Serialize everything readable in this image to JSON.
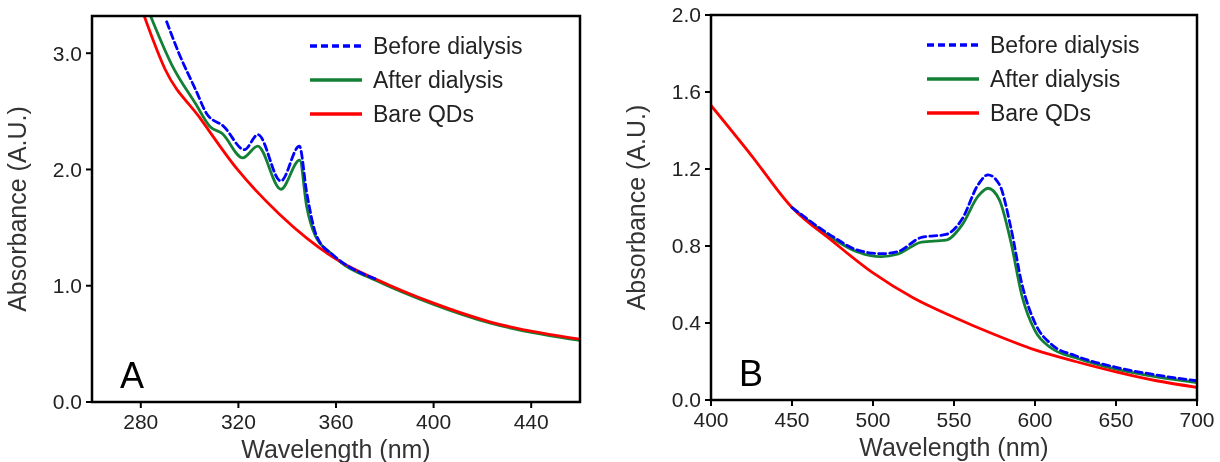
{
  "chart_data": [
    {
      "type": "line",
      "xlabel": "Wavelength (nm)",
      "ylabel": "Absorbance (A.U.)",
      "annotations": [
        "A"
      ],
      "legend": "top right",
      "xlim": [
        260,
        460
      ],
      "xticks": [
        280,
        320,
        360,
        400,
        440
      ],
      "ylim": [
        0,
        3.32
      ],
      "yticks": [
        {
          "value": 0,
          "label": "0.0"
        },
        {
          "value": 1,
          "label": "1.0"
        },
        {
          "value": 2,
          "label": "2.0"
        },
        {
          "value": 3,
          "label": "3.0"
        }
      ],
      "series": [
        {
          "name": "Before dialysis",
          "color": "#0000ff",
          "line_style": "dashed",
          "x": [
            290.6,
            295.6,
            302.6,
            307,
            314,
            322.5,
            328,
            337.4,
            345,
            348,
            352,
            359,
            362,
            376
          ],
          "values": [
            3.27,
            3.0,
            2.68,
            2.48,
            2.37,
            2.17,
            2.3,
            1.9,
            2.2,
            1.8,
            1.43,
            1.26,
            1.21,
            1.06
          ]
        },
        {
          "name": "After dialysis",
          "color": "#138036",
          "line_style": "solid",
          "x": [
            284,
            292.7,
            302.6,
            308.3,
            313.3,
            321.8,
            327.9,
            337.4,
            345.1,
            348,
            351.5,
            357.9,
            362,
            376,
            400,
            423,
            460
          ],
          "values": [
            3.32,
            2.9,
            2.56,
            2.37,
            2.31,
            2.1,
            2.2,
            1.83,
            2.08,
            1.68,
            1.43,
            1.28,
            1.2,
            1.05,
            0.84,
            0.68,
            0.53
          ]
        },
        {
          "name": "Bare QDs",
          "color": "#ff0000",
          "line_style": "solid",
          "x": [
            281.4,
            290,
            304,
            319.6,
            336.6,
            348,
            360.7,
            376,
            400,
            423,
            460
          ],
          "values": [
            3.32,
            2.86,
            2.45,
            2.0,
            1.62,
            1.41,
            1.22,
            1.06,
            0.85,
            0.69,
            0.54
          ]
        }
      ]
    },
    {
      "type": "line",
      "xlabel": "Wavelength (nm)",
      "ylabel": "Absorbance (A.U.)",
      "annotations": [
        "B"
      ],
      "legend": "top right",
      "xlim": [
        400,
        700
      ],
      "xticks": [
        400,
        450,
        500,
        550,
        600,
        650,
        700
      ],
      "ylim": [
        0,
        2
      ],
      "yticks": [
        {
          "value": 0,
          "label": "0.0"
        },
        {
          "value": 0.4,
          "label": "0.4"
        },
        {
          "value": 0.8,
          "label": "0.8"
        },
        {
          "value": 1.2,
          "label": "1.2"
        },
        {
          "value": 1.6,
          "label": "1.6"
        },
        {
          "value": 2,
          "label": "2.0"
        }
      ],
      "series": [
        {
          "name": "Before dialysis",
          "color": "#0000ff",
          "line_style": "dashed",
          "x": [
            450,
            475,
            490,
            505,
            515,
            530,
            545,
            555,
            565,
            571,
            578,
            585,
            592,
            600,
            610,
            625,
            650,
            675,
            700
          ],
          "values": [
            1.0,
            0.85,
            0.78,
            0.76,
            0.77,
            0.845,
            0.86,
            0.94,
            1.12,
            1.17,
            1.12,
            0.9,
            0.6,
            0.4,
            0.29,
            0.23,
            0.17,
            0.13,
            0.1
          ]
        },
        {
          "name": "After dialysis",
          "color": "#138036",
          "line_style": "solid",
          "x": [
            450,
            475,
            490,
            505,
            515,
            530,
            545,
            555,
            565,
            571,
            578,
            585,
            592,
            600,
            610,
            625,
            650,
            675,
            700
          ],
          "values": [
            1.0,
            0.84,
            0.77,
            0.745,
            0.757,
            0.82,
            0.83,
            0.91,
            1.06,
            1.1,
            1.04,
            0.825,
            0.54,
            0.36,
            0.27,
            0.22,
            0.16,
            0.12,
            0.09
          ]
        },
        {
          "name": "Bare QDs",
          "color": "#ff0000",
          "line_style": "solid",
          "x": [
            400,
            425,
            450,
            475,
            500,
            525,
            550,
            575,
            600,
            625,
            650,
            675,
            700
          ],
          "values": [
            1.53,
            1.27,
            1.0,
            0.825,
            0.66,
            0.53,
            0.43,
            0.34,
            0.26,
            0.2,
            0.146,
            0.1,
            0.066
          ]
        }
      ]
    }
  ]
}
